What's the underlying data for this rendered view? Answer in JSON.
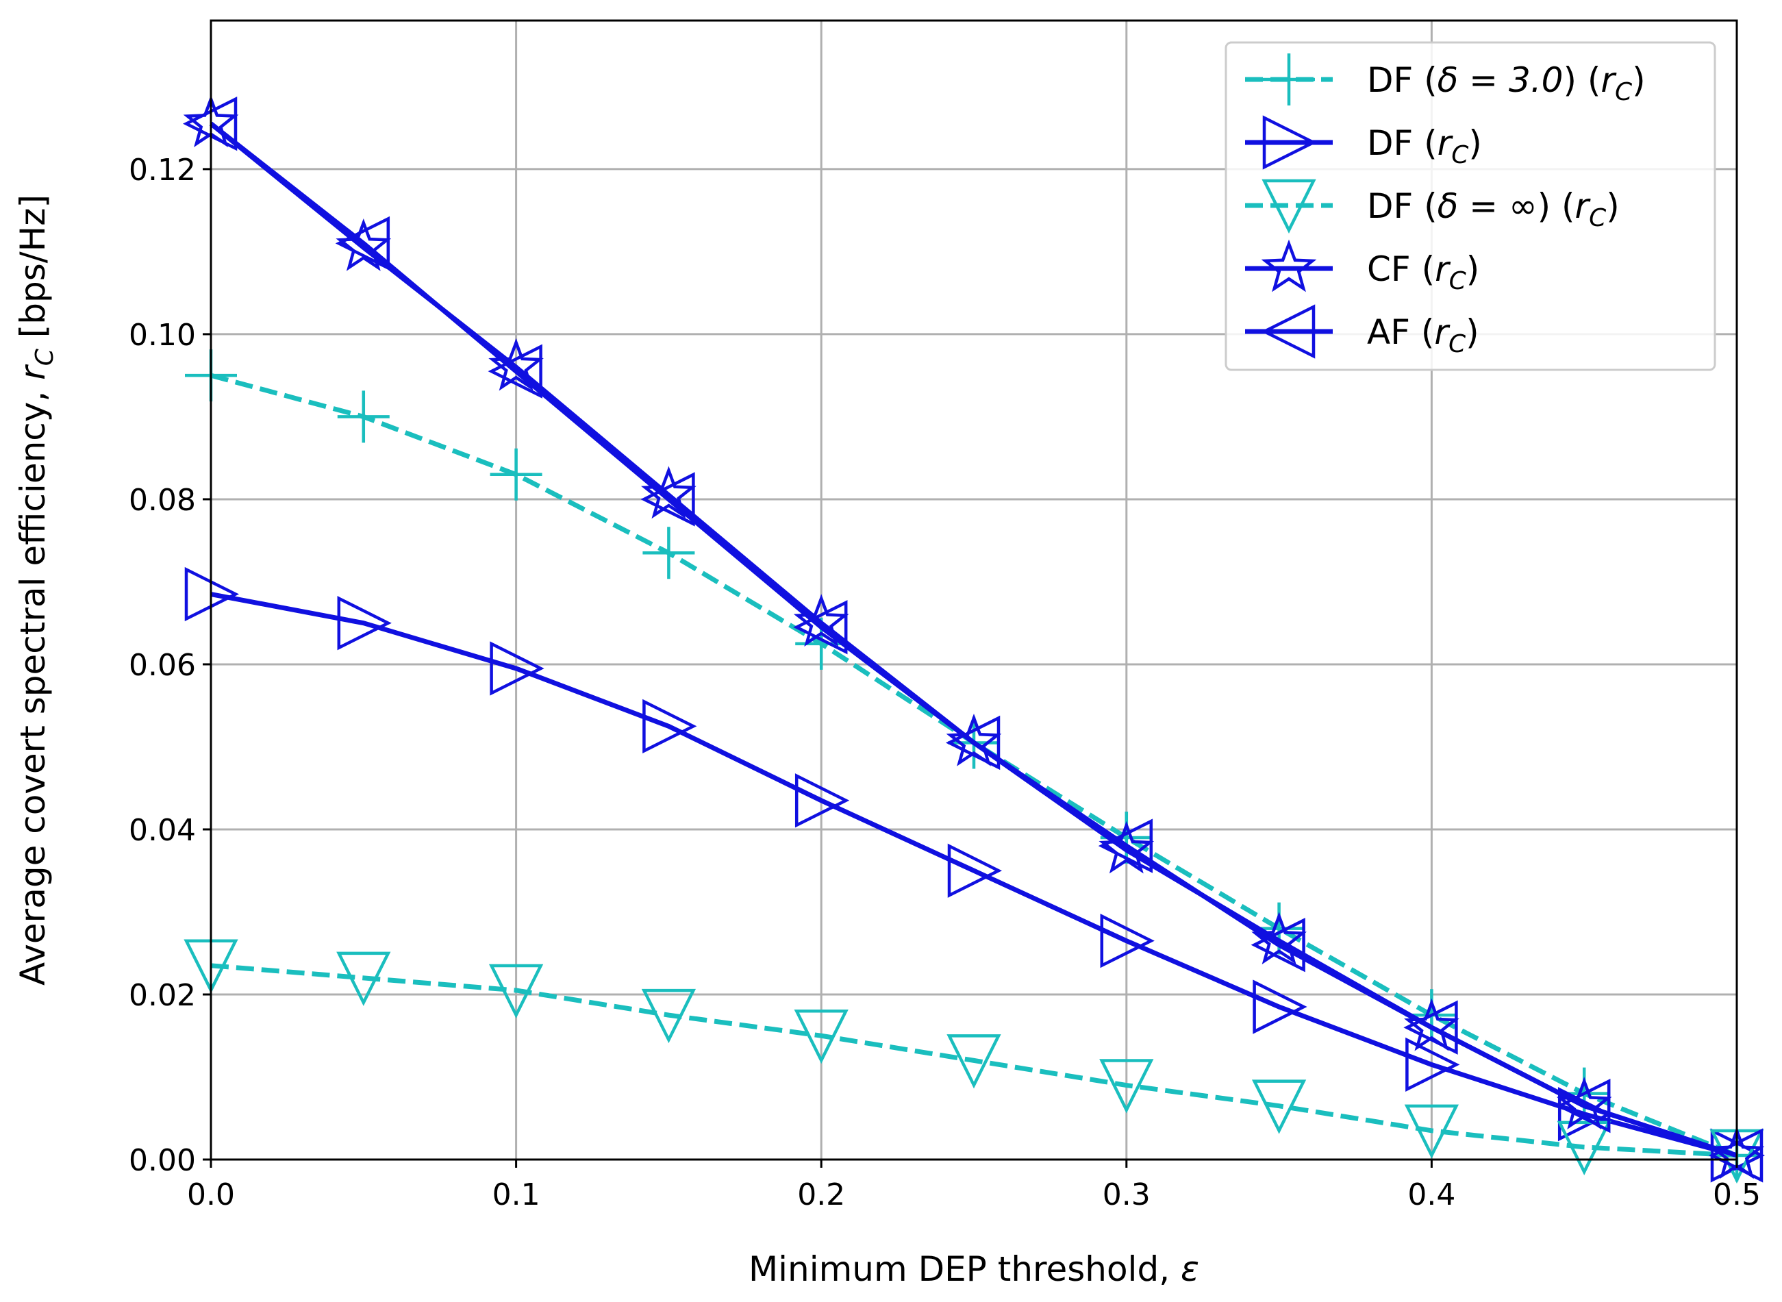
{
  "chart_data": {
    "type": "line",
    "title": "",
    "xlabel": "Minimum DEP threshold, ε",
    "ylabel": "Average covert spectral efficiency, r_C [bps/Hz]",
    "xlim": [
      0.0,
      0.5
    ],
    "ylim": [
      0.0,
      0.138
    ],
    "grid": true,
    "legend_position": "top-right",
    "x": [
      0.0,
      0.05,
      0.1,
      0.15,
      0.2,
      0.25,
      0.3,
      0.35,
      0.4,
      0.45,
      0.5
    ],
    "x_ticks": [
      "0.0",
      "0.1",
      "0.2",
      "0.3",
      "0.4",
      "0.5"
    ],
    "x_tick_values": [
      0.0,
      0.1,
      0.2,
      0.3,
      0.4,
      0.5
    ],
    "y_ticks": [
      "0.00",
      "0.02",
      "0.04",
      "0.06",
      "0.08",
      "0.10",
      "0.12"
    ],
    "y_tick_values": [
      0.0,
      0.02,
      0.04,
      0.06,
      0.08,
      0.1,
      0.12
    ],
    "series": [
      {
        "name": "DF (δ = 3.0) (r_C)",
        "legend_main": "DF (",
        "legend_math": "δ = 3.0",
        "legend_mid": ") (",
        "legend_rc": "r",
        "legend_sub": "C",
        "legend_end": ")",
        "color": "#1abebe",
        "dashed": true,
        "marker": "plus",
        "values": [
          0.095,
          0.09,
          0.083,
          0.0735,
          0.0625,
          0.0505,
          0.039,
          0.028,
          0.0175,
          0.008,
          0.0005
        ]
      },
      {
        "name": "DF (r_C)",
        "legend_main": "DF (",
        "legend_math": "",
        "legend_mid": "",
        "legend_rc": "r",
        "legend_sub": "C",
        "legend_end": ")",
        "color": "#1010e0",
        "dashed": false,
        "marker": "triangle-right",
        "values": [
          0.0685,
          0.065,
          0.0595,
          0.0525,
          0.0435,
          0.035,
          0.0265,
          0.0185,
          0.0115,
          0.0055,
          0.0005
        ]
      },
      {
        "name": "DF (δ = ∞) (r_C)",
        "legend_main": "DF (",
        "legend_math": "δ = ∞",
        "legend_mid": ") (",
        "legend_rc": "r",
        "legend_sub": "C",
        "legend_end": ")",
        "color": "#1abebe",
        "dashed": true,
        "marker": "triangle-down",
        "values": [
          0.0235,
          0.022,
          0.0205,
          0.0175,
          0.015,
          0.012,
          0.009,
          0.0065,
          0.0035,
          0.0015,
          0.0005
        ]
      },
      {
        "name": "CF (r_C)",
        "legend_main": "CF (",
        "legend_math": "",
        "legend_mid": "",
        "legend_rc": "r",
        "legend_sub": "C",
        "legend_end": ")",
        "color": "#1010e0",
        "dashed": false,
        "marker": "star",
        "values": [
          0.1255,
          0.1105,
          0.096,
          0.0805,
          0.065,
          0.0505,
          0.0375,
          0.0265,
          0.016,
          0.0065,
          0.0005
        ]
      },
      {
        "name": "AF (r_C)",
        "legend_main": "AF (",
        "legend_math": "",
        "legend_mid": "",
        "legend_rc": "r",
        "legend_sub": "C",
        "legend_end": ")",
        "color": "#1010e0",
        "dashed": false,
        "marker": "triangle-left",
        "values": [
          0.1255,
          0.111,
          0.0955,
          0.08,
          0.0645,
          0.0505,
          0.038,
          0.026,
          0.016,
          0.0065,
          0.0005
        ]
      }
    ]
  }
}
